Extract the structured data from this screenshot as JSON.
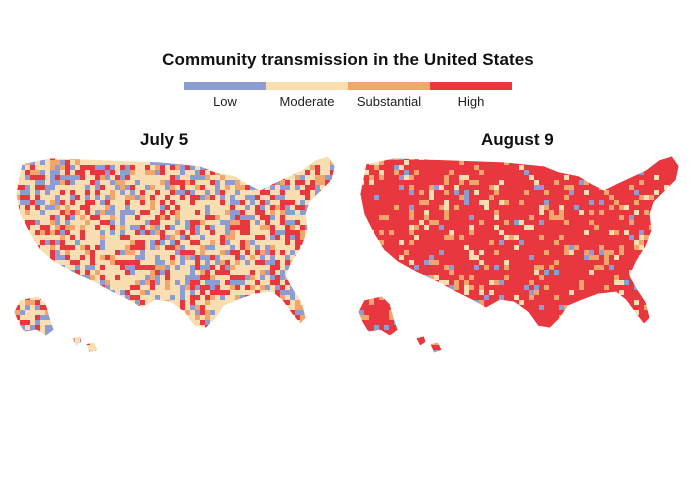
{
  "header": {
    "title": "Community transmission in the United States"
  },
  "legend": {
    "items": [
      {
        "label": "Low",
        "color": "#8b9dd3"
      },
      {
        "label": "Moderate",
        "color": "#f8deb1"
      },
      {
        "label": "Substantial",
        "color": "#f2a66c"
      },
      {
        "label": "High",
        "color": "#e8373e"
      }
    ]
  },
  "maps": [
    {
      "title": "July 5",
      "mix": {
        "low": 0.22,
        "moderate": 0.46,
        "substantial": 0.1,
        "high": 0.22
      }
    },
    {
      "title": "August 9",
      "mix": {
        "low": 0.05,
        "moderate": 0.06,
        "substantial": 0.1,
        "high": 0.79
      }
    }
  ],
  "colors": {
    "low": "#8b9dd3",
    "moderate": "#f8deb1",
    "substantial": "#f2a66c",
    "high": "#e8373e",
    "background": "#ffffff"
  }
}
